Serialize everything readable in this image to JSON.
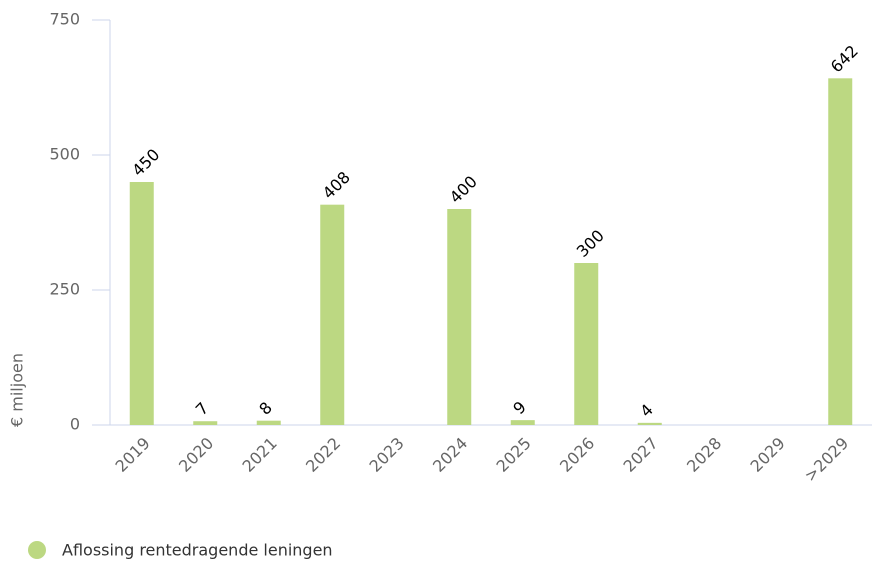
{
  "chart_data": {
    "type": "bar",
    "y_axis_label": "€ miljoen",
    "categories": [
      "2019",
      "2020",
      "2021",
      "2022",
      "2023",
      "2024",
      "2025",
      "2026",
      "2027",
      "2028",
      "2029",
      ">2029"
    ],
    "series": [
      {
        "name": "Aflossing rentedragende leningen",
        "color": "#bcd882",
        "values": [
          450,
          7,
          8,
          408,
          null,
          400,
          9,
          300,
          4,
          null,
          null,
          642
        ]
      }
    ],
    "ylim": [
      0,
      750
    ],
    "yticks": [
      0,
      250,
      500,
      750
    ],
    "legend": "bottom-left"
  }
}
